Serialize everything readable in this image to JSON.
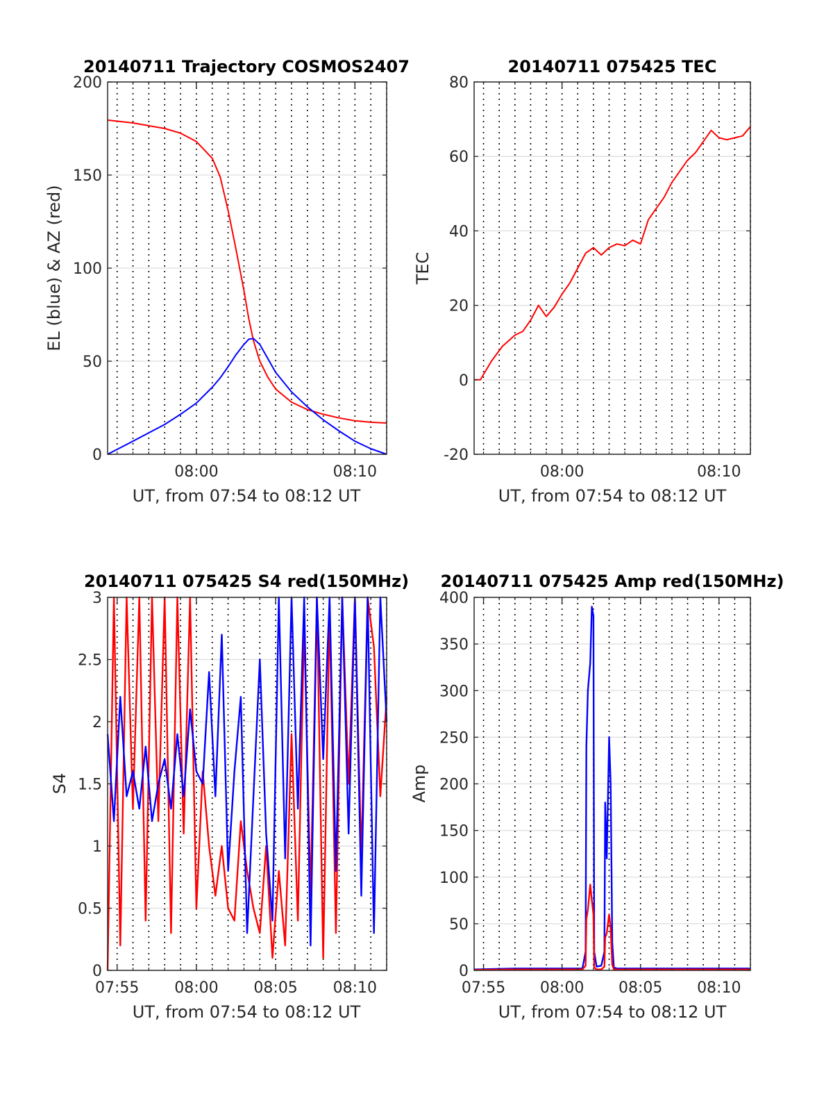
{
  "chart_data": [
    {
      "type": "line",
      "title": "20140711 Trajectory COSMOS2407",
      "xlabel": "UT, from 07:54 to 08:12 UT",
      "ylabel": "EL (blue) & AZ (red)",
      "x_tick_labels": [
        "08:00",
        "08:10"
      ],
      "x_ticks_min": [
        6,
        16
      ],
      "xlim_min": [
        0.4,
        18
      ],
      "ylim": [
        0,
        200
      ],
      "y_ticks": [
        0,
        50,
        100,
        150,
        200
      ],
      "y_tick_labels": [
        "0",
        "50",
        "100",
        "150",
        "200"
      ],
      "grid": true,
      "x_min": [
        0.4,
        2,
        4,
        5,
        6,
        7,
        7.5,
        8,
        8.5,
        9,
        9.3,
        9.6,
        10,
        10.5,
        11,
        12,
        13,
        14,
        15,
        16,
        17,
        18
      ],
      "series": [
        {
          "color": "#ff0000",
          "values": [
            179.5,
            178,
            175,
            172.5,
            168,
            159,
            149,
            131,
            110,
            88,
            73,
            61,
            50,
            41.5,
            35,
            28,
            24,
            21.5,
            19.5,
            18,
            17.2,
            16.8
          ]
        },
        {
          "color": "#0000ff",
          "values": [
            0,
            7,
            16,
            21.5,
            27.5,
            36,
            41,
            47,
            53.5,
            59,
            61.8,
            62.2,
            59,
            51.5,
            44,
            33.5,
            25.5,
            18.5,
            12.5,
            7,
            3,
            0
          ]
        }
      ]
    },
    {
      "type": "line",
      "title": "20140711 075425 TEC",
      "xlabel": "UT, from 07:54 to 08:12 UT",
      "ylabel": "TEC",
      "x_tick_labels": [
        "08:00",
        "08:10"
      ],
      "x_ticks_min": [
        6,
        16
      ],
      "xlim_min": [
        0.4,
        18
      ],
      "ylim": [
        -20,
        80
      ],
      "y_ticks": [
        -20,
        0,
        20,
        40,
        60,
        80
      ],
      "y_tick_labels": [
        "-20",
        "0",
        "20",
        "40",
        "60",
        "80"
      ],
      "grid": true,
      "x_min": [
        0.4,
        0.8,
        1.5,
        2.2,
        3,
        3.5,
        4,
        4.5,
        5,
        5.5,
        6,
        6.5,
        7,
        7.5,
        8,
        8.5,
        9,
        9.5,
        10,
        10.5,
        11,
        11.5,
        12,
        12.5,
        13,
        13.5,
        14,
        14.5,
        15,
        15.5,
        16,
        16.5,
        17,
        17.5,
        18
      ],
      "series": [
        {
          "color": "#ff0000",
          "values": [
            0,
            0,
            5,
            9,
            12,
            13,
            16,
            20,
            17,
            19.5,
            23,
            26,
            30,
            34,
            35.5,
            33.5,
            35.5,
            36.5,
            36,
            37.5,
            36.5,
            43,
            46,
            49,
            53,
            56,
            59,
            61,
            64,
            67,
            65,
            64.5,
            65,
            65.5,
            68
          ]
        }
      ]
    },
    {
      "type": "line",
      "title": "20140711 075425 S4 red(150MHz)",
      "xlabel": "UT, from 07:54 to 08:12 UT",
      "ylabel": "S4",
      "x_tick_labels": [
        "07:55",
        "08:00",
        "08:05",
        "08:10"
      ],
      "x_ticks_min": [
        1,
        6,
        11,
        16
      ],
      "xlim_min": [
        0.4,
        18
      ],
      "ylim": [
        0,
        3
      ],
      "y_ticks": [
        0,
        0.5,
        1,
        1.5,
        2,
        2.5,
        3
      ],
      "y_tick_labels": [
        "0",
        "0.5",
        "1",
        "1.5",
        "2",
        "2.5",
        "3"
      ],
      "grid": true,
      "x_min": [
        0.4,
        0.8,
        1.2,
        1.6,
        2,
        2.4,
        2.8,
        3.2,
        3.6,
        4,
        4.4,
        4.8,
        5.2,
        5.6,
        6,
        6.4,
        6.8,
        7.2,
        7.6,
        8,
        8.4,
        8.8,
        9.2,
        9.6,
        10,
        10.4,
        10.8,
        11.2,
        11.6,
        12,
        12.4,
        12.8,
        13.2,
        13.6,
        14,
        14.4,
        14.8,
        15.2,
        15.6,
        16,
        16.4,
        16.8,
        17.2,
        17.6,
        18
      ],
      "series": [
        {
          "name": "red",
          "color": "#ff0000",
          "values": [
            0,
            3,
            0.2,
            3,
            1.3,
            3,
            0.4,
            3,
            1.2,
            3,
            0.3,
            3,
            1.1,
            3,
            0.5,
            1.6,
            1.0,
            0.6,
            1.0,
            0.5,
            0.4,
            1.2,
            0.8,
            0.5,
            0.3,
            1.0,
            0.1,
            0.8,
            0.2,
            1.9,
            0.4,
            2.8,
            0.6,
            3,
            0.1,
            2.9,
            0.3,
            3,
            1.5,
            3,
            0.9,
            3,
            2.6,
            1.4,
            2.2
          ]
        },
        {
          "name": "blue",
          "color": "#0000ff",
          "values": [
            1.9,
            1.2,
            2.2,
            1.4,
            1.6,
            1.3,
            1.8,
            1.2,
            1.5,
            1.7,
            1.3,
            1.9,
            1.4,
            2.1,
            1.6,
            1.5,
            2.4,
            1.4,
            2.7,
            0.8,
            1.6,
            2.2,
            0.3,
            1.4,
            2.5,
            1.1,
            0.4,
            3,
            0.9,
            3,
            1.3,
            3,
            0.2,
            3,
            1.7,
            3,
            0.8,
            3,
            1.1,
            3,
            0.6,
            3,
            0.3,
            3,
            2.0
          ]
        }
      ]
    },
    {
      "type": "line",
      "title": "20140711 075425 Amp red(150MHz)",
      "xlabel": "UT, from 07:54 to 08:12 UT",
      "ylabel": "Amp",
      "x_tick_labels": [
        "07:55",
        "08:00",
        "08:05",
        "08:10"
      ],
      "x_ticks_min": [
        1,
        6,
        11,
        16
      ],
      "xlim_min": [
        0.4,
        18
      ],
      "ylim": [
        0,
        400
      ],
      "y_ticks": [
        0,
        50,
        100,
        150,
        200,
        250,
        300,
        350,
        400
      ],
      "y_tick_labels": [
        "0",
        "50",
        "100",
        "150",
        "200",
        "250",
        "300",
        "350",
        "400"
      ],
      "grid": true,
      "x_min": [
        0.4,
        3,
        6,
        7.3,
        7.5,
        7.55,
        7.65,
        7.8,
        7.9,
        8.0,
        8.05,
        8.2,
        8.5,
        8.7,
        8.75,
        8.85,
        9.0,
        9.1,
        9.2,
        9.3,
        9.5,
        12,
        15,
        18
      ],
      "series": [
        {
          "name": "blue",
          "color": "#0000ff",
          "values": [
            1,
            2,
            2,
            2,
            20,
            240,
            300,
            330,
            390,
            380,
            20,
            4,
            5,
            20,
            180,
            120,
            250,
            200,
            30,
            3,
            2,
            2,
            2,
            2
          ]
        },
        {
          "name": "red",
          "color": "#ff0000",
          "values": [
            0.5,
            1,
            1,
            1,
            5,
            55,
            65,
            92,
            75,
            60,
            3,
            1,
            1,
            4,
            35,
            40,
            60,
            45,
            6,
            1,
            1,
            1,
            1,
            1
          ]
        }
      ]
    }
  ]
}
